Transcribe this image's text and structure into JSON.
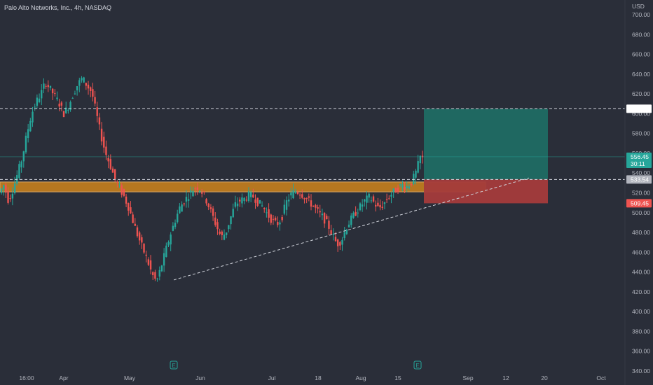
{
  "chart_data": {
    "type": "candlestick",
    "title": "Palo Alto Networks, Inc., 4h, NASDAQ",
    "currency": "USD",
    "ylim": [
      340,
      710
    ],
    "y_ticks": [
      "700.00",
      "680.00",
      "660.00",
      "640.00",
      "620.00",
      "600.00",
      "580.00",
      "560.00",
      "540.00",
      "520.00",
      "500.00",
      "480.00",
      "460.00",
      "440.00",
      "420.00",
      "400.00",
      "380.00",
      "360.00",
      "340.00"
    ],
    "x_ticks": [
      "16:00",
      "Apr",
      "May",
      "Jun",
      "Jul",
      "18",
      "Aug",
      "15",
      "Sep",
      "12",
      "20",
      "Oct"
    ],
    "prices": [
      520,
      528,
      512,
      524,
      540,
      556,
      580,
      600,
      612,
      620,
      632,
      625,
      618,
      610,
      600,
      608,
      620,
      630,
      636,
      628,
      622,
      600,
      578,
      560,
      548,
      534,
      525,
      516,
      505,
      490,
      476,
      464,
      452,
      438,
      430,
      445,
      462,
      478,
      492,
      505,
      512,
      518,
      524,
      526,
      520,
      510,
      498,
      486,
      475,
      480,
      495,
      508,
      512,
      514,
      518,
      516,
      510,
      506,
      498,
      492,
      488,
      494,
      510,
      518,
      522,
      520,
      516,
      511,
      506,
      500,
      495,
      488,
      478,
      468,
      472,
      485,
      493,
      500,
      506,
      512,
      516,
      510,
      504,
      508,
      515,
      520,
      524,
      528,
      526,
      530,
      540,
      556
    ],
    "price_label": "556.45",
    "countdown": "30:11",
    "levels": {
      "target": "605.00",
      "entry": "533.54",
      "stop": "509.45"
    },
    "earnings_marker": "E",
    "colors": {
      "up": "#26a69a",
      "down": "#ef5350",
      "profit_zone": "#1f6b63",
      "loss_zone": "#a43b3b",
      "support_zone": "#c67f1e",
      "support_border": "#e9b46a"
    }
  }
}
